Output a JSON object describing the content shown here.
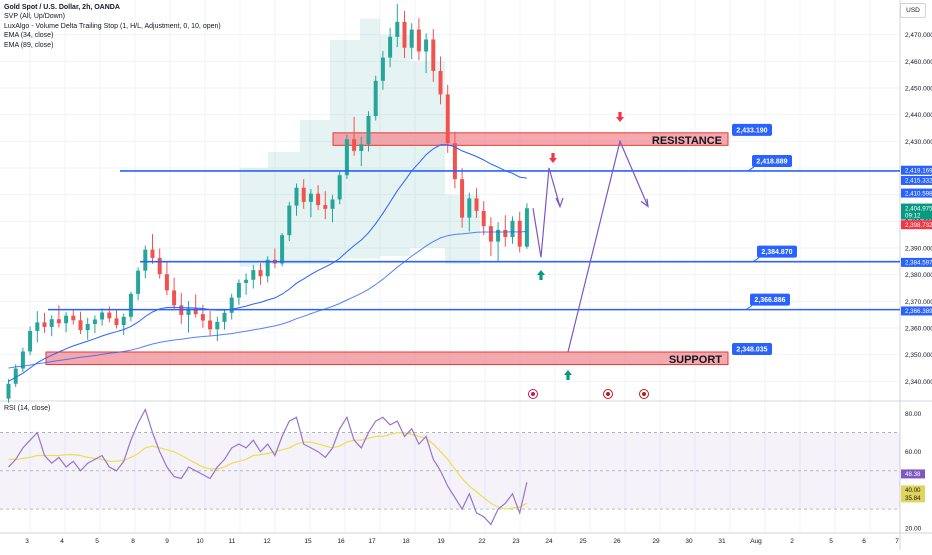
{
  "legend": {
    "symbol": "Gold Spot / U.S. Dollar, 2h, OANDA",
    "indicators": [
      "SVP (All, Up/Down)",
      "LuxAlgo - Volume Delta Trailing Stop (1, H/L, Adjustment, 0, 10, open)",
      "EMA (34, close)",
      "EMA (89, close)"
    ]
  },
  "currency_button": "USD",
  "rsi_label": "RSI (14, close)",
  "colors": {
    "bull": "#26a69a",
    "bear": "#ef5350",
    "line": "#2962ff",
    "zone_fill": "#f28b91",
    "zone_border": "#e53935",
    "projection": "#7e57c2",
    "rsi": "#9575cd",
    "rsi_ma": "#e9e052",
    "arrow_up": "#089981",
    "arrow_down": "#f23645"
  },
  "chart_data": [
    {
      "type": "candlestick",
      "title": "",
      "price_range": [
        2333,
        2483
      ],
      "y_ticks": [
        2340,
        2350,
        2360,
        2370,
        2380,
        2390,
        2400,
        2410,
        2420,
        2430,
        2440,
        2450,
        2460,
        2470
      ],
      "y_tick_labels": [
        "2,340.000",
        "2,350.000",
        "2,360.000",
        "2,370.000",
        "2,380.000",
        "2,390.000",
        "2,400.000",
        "2,410.000",
        "2,420.000",
        "2,430.000",
        "2,440.000",
        "2,450.000",
        "2,460.000",
        "2,470.000"
      ],
      "x_tick_labels": [
        "3",
        "4",
        "5",
        "8",
        "9",
        "10",
        "11",
        "12",
        "15",
        "16",
        "17",
        "18",
        "19",
        "22",
        "23",
        "24",
        "25",
        "26",
        "29",
        "30",
        "31",
        "Aug",
        "2",
        "5",
        "6",
        "7"
      ],
      "ohlc": [
        [
          2333.5,
          2340.8,
          2332,
          2339.1
        ],
        [
          2339.1,
          2346.4,
          2337.9,
          2344.8
        ],
        [
          2344.8,
          2352.6,
          2343.5,
          2351.2
        ],
        [
          2351.2,
          2360.5,
          2349.8,
          2358.9
        ],
        [
          2358.9,
          2366.3,
          2354.6,
          2362.1
        ],
        [
          2362.1,
          2365.7,
          2358.2,
          2360.4
        ],
        [
          2360.4,
          2364.8,
          2356.9,
          2363.3
        ],
        [
          2363.3,
          2368.5,
          2360.2,
          2361.8
        ],
        [
          2361.8,
          2365.9,
          2358.4,
          2364.6
        ],
        [
          2364.6,
          2367.2,
          2361.3,
          2362.9
        ],
        [
          2362.9,
          2366.1,
          2357.7,
          2359.2
        ],
        [
          2359.2,
          2363.8,
          2355.6,
          2361.5
        ],
        [
          2361.5,
          2364.7,
          2358.1,
          2363.2
        ],
        [
          2363.2,
          2367.4,
          2360.9,
          2365.8
        ],
        [
          2365.8,
          2368.1,
          2362.2,
          2363.6
        ],
        [
          2363.6,
          2366.9,
          2359.8,
          2361.1
        ],
        [
          2361.1,
          2365.4,
          2357.3,
          2364.2
        ],
        [
          2364.2,
          2373.6,
          2362.5,
          2372.8
        ],
        [
          2372.8,
          2382.7,
          2370.4,
          2381.5
        ],
        [
          2381.5,
          2390.9,
          2378.6,
          2389.4
        ],
        [
          2389.4,
          2395.2,
          2384.1,
          2386.3
        ],
        [
          2386.3,
          2389.8,
          2378.5,
          2380.2
        ],
        [
          2380.2,
          2384.6,
          2372.3,
          2374.1
        ],
        [
          2374.1,
          2378.9,
          2366.8,
          2368.5
        ],
        [
          2368.5,
          2373.2,
          2361.6,
          2364.9
        ],
        [
          2364.9,
          2370.1,
          2358.3,
          2367.3
        ],
        [
          2367.3,
          2372.6,
          2363.9,
          2365.2
        ],
        [
          2365.2,
          2368.7,
          2360.1,
          2362.8
        ],
        [
          2362.8,
          2366.4,
          2356.9,
          2359.5
        ],
        [
          2359.5,
          2364.2,
          2355.1,
          2362.3
        ],
        [
          2362.3,
          2366.8,
          2359.4,
          2365.7
        ],
        [
          2365.7,
          2372.9,
          2363.2,
          2371.4
        ],
        [
          2371.4,
          2378.2,
          2368.7,
          2376.9
        ],
        [
          2376.9,
          2380.5,
          2372.4,
          2378.1
        ],
        [
          2378.1,
          2383.6,
          2374.8,
          2381.7
        ],
        [
          2381.7,
          2384.3,
          2376.2,
          2379.4
        ],
        [
          2379.4,
          2386.9,
          2377.1,
          2385.6
        ],
        [
          2385.6,
          2389.8,
          2382.4,
          2384.2
        ],
        [
          2384.2,
          2395.6,
          2383.1,
          2394.8
        ],
        [
          2394.8,
          2407.3,
          2392.6,
          2405.9
        ],
        [
          2405.9,
          2414.2,
          2402.1,
          2412.6
        ],
        [
          2412.6,
          2415.8,
          2404.7,
          2407.3
        ],
        [
          2407.3,
          2412.1,
          2401.5,
          2410.4
        ],
        [
          2410.4,
          2413.6,
          2404.2,
          2406.1
        ],
        [
          2406.1,
          2411.3,
          2400.8,
          2404.7
        ],
        [
          2404.7,
          2409.9,
          2399.6,
          2408.2
        ],
        [
          2408.2,
          2418.6,
          2406.4,
          2417.3
        ],
        [
          2417.3,
          2432.5,
          2415.9,
          2430.8
        ],
        [
          2430.8,
          2439.2,
          2424.6,
          2426.4
        ],
        [
          2426.4,
          2431.8,
          2420.7,
          2428.9
        ],
        [
          2428.9,
          2441.3,
          2426.2,
          2439.5
        ],
        [
          2439.5,
          2454.6,
          2437.8,
          2452.7
        ],
        [
          2452.7,
          2463.9,
          2449.3,
          2461.4
        ],
        [
          2461.4,
          2472.6,
          2457.8,
          2469.2
        ],
        [
          2469.2,
          2481.5,
          2465.3,
          2474.8
        ],
        [
          2474.8,
          2478.9,
          2461.2,
          2465.1
        ],
        [
          2465.1,
          2474.3,
          2460.8,
          2471.9
        ],
        [
          2471.9,
          2476.2,
          2460.4,
          2463.7
        ],
        [
          2463.7,
          2470.5,
          2455.6,
          2468.2
        ],
        [
          2468.2,
          2472.1,
          2452.3,
          2456.4
        ],
        [
          2456.4,
          2461.8,
          2443.9,
          2447.6
        ],
        [
          2447.6,
          2451.2,
          2425.7,
          2429.3
        ],
        [
          2429.3,
          2433.6,
          2412.4,
          2415.8
        ],
        [
          2415.8,
          2419.9,
          2397.6,
          2401.4
        ],
        [
          2401.4,
          2410.8,
          2396.2,
          2408.6
        ],
        [
          2408.6,
          2412.4,
          2401.3,
          2403.9
        ],
        [
          2403.9,
          2407.6,
          2394.8,
          2398.2
        ],
        [
          2398.2,
          2401.5,
          2386.9,
          2392.4
        ],
        [
          2392.4,
          2399.7,
          2385.1,
          2396.8
        ],
        [
          2396.8,
          2402.3,
          2390.5,
          2394.1
        ],
        [
          2394.1,
          2401.8,
          2391.6,
          2400.2
        ],
        [
          2400.2,
          2403.6,
          2388.4,
          2390.5
        ],
        [
          2390.5,
          2406.8,
          2389.7,
          2404.9
        ]
      ],
      "ema34": [
        2340,
        2341.5,
        2343,
        2345,
        2347,
        2348.5,
        2349.8,
        2351,
        2352.2,
        2353.3,
        2354.2,
        2355.1,
        2356,
        2357,
        2357.9,
        2358.6,
        2359.4,
        2360.6,
        2362.2,
        2364.3,
        2366,
        2367.2,
        2367.7,
        2367.8,
        2367.6,
        2367.6,
        2367.5,
        2367.3,
        2366.9,
        2366.7,
        2366.7,
        2367,
        2367.6,
        2368.2,
        2369,
        2369.6,
        2370.5,
        2371.3,
        2372.7,
        2374.6,
        2376.8,
        2378.4,
        2380.1,
        2381.6,
        2382.9,
        2384.3,
        2386.1,
        2388.6,
        2390.9,
        2393,
        2395.7,
        2399.1,
        2403,
        2407.2,
        2411.5,
        2415.1,
        2418.9,
        2421.9,
        2425,
        2427.2,
        2428.7,
        2428.7,
        2427.9,
        2426.4,
        2425.4,
        2424.3,
        2423,
        2421.5,
        2420.3,
        2419,
        2418,
        2416.6,
        2416.2
      ],
      "ema89": [
        2345,
        2345.4,
        2345.7,
        2346.1,
        2346.6,
        2347,
        2347.4,
        2347.8,
        2348.2,
        2348.6,
        2349,
        2349.3,
        2349.7,
        2350.1,
        2350.5,
        2350.8,
        2351.2,
        2351.7,
        2352.4,
        2353.2,
        2354,
        2354.6,
        2355.1,
        2355.5,
        2355.8,
        2356.2,
        2356.5,
        2356.8,
        2357,
        2357.3,
        2357.6,
        2357.9,
        2358.4,
        2358.8,
        2359.3,
        2359.7,
        2360.3,
        2360.8,
        2361.5,
        2362.4,
        2363.5,
        2364.4,
        2365.4,
        2366.3,
        2367.2,
        2368.1,
        2369.2,
        2370.5,
        2371.7,
        2373,
        2374.5,
        2376.3,
        2378.3,
        2380.5,
        2382.8,
        2384.8,
        2387,
        2388.8,
        2390.8,
        2392.4,
        2393.8,
        2394.6,
        2395.1,
        2395.3,
        2395.6,
        2395.9,
        2396,
        2396,
        2396,
        2396,
        2396.1,
        2396,
        2396.2
      ],
      "horizontal_levels": [
        {
          "price": 2418.889,
          "label": "2,418.889"
        },
        {
          "price": 2384.87,
          "label": "2,384.870"
        },
        {
          "price": 2366.886,
          "label": "2,366.886"
        }
      ],
      "zones": [
        {
          "name": "RESISTANCE",
          "top": 2433.19,
          "bottom": 2428.5,
          "label": "2,433.190"
        },
        {
          "name": "SUPPORT",
          "top": 2351.0,
          "bottom": 2346.3,
          "label": "2,348.035"
        }
      ],
      "projection_path": [
        [
          2390.5,
          2404.9
        ],
        [
          2392.0,
          2386.5
        ],
        [
          2394.0,
          2420.0
        ],
        [
          2395.5,
          2405.0
        ]
      ],
      "projection_path2": [
        [
          2414.0,
          2351.0
        ],
        [
          2419.5,
          2429.6
        ],
        [
          2426.0,
          2405.6
        ]
      ],
      "price_axis_badges": [
        {
          "label": "2,419.169",
          "price": 2419.169,
          "color": "#2962ff"
        },
        {
          "label": "2,415.332",
          "price": 2415.332,
          "color": "#2962ff"
        },
        {
          "label": "2,410.598",
          "price": 2410.598,
          "color": "#2962ff"
        },
        {
          "label": "2,404.975",
          "price": 2404.975,
          "color": "#089981",
          "sub": "09:12"
        },
        {
          "label": "2,398.732",
          "price": 2398.732,
          "color": "#f23645"
        },
        {
          "label": "2,384.597",
          "price": 2384.597,
          "color": "#2962ff"
        },
        {
          "label": "2,366.389",
          "price": 2366.389,
          "color": "#2962ff"
        }
      ]
    },
    {
      "type": "line",
      "title": "RSI (14, close)",
      "y_range": [
        18,
        86
      ],
      "y_ticks": [
        20,
        40,
        60,
        80
      ],
      "y_tick_labels": [
        "20.00",
        "40.00",
        "60.00",
        "80.00"
      ],
      "bands": [
        70,
        50,
        30
      ],
      "rsi": [
        52,
        56,
        62,
        66,
        70,
        58,
        54,
        57,
        52,
        55,
        50,
        54,
        56,
        58,
        52,
        50,
        55,
        66,
        75,
        82,
        70,
        60,
        52,
        47,
        46,
        52,
        50,
        48,
        46,
        52,
        56,
        62,
        64,
        62,
        66,
        60,
        64,
        58,
        68,
        76,
        78,
        64,
        62,
        60,
        57,
        62,
        72,
        78,
        66,
        62,
        70,
        76,
        78,
        74,
        76,
        68,
        72,
        64,
        68,
        56,
        50,
        42,
        36,
        30,
        38,
        28,
        26,
        22,
        30,
        33,
        38,
        28,
        44
      ],
      "rsi_ma": [
        56,
        56,
        56.5,
        57,
        58,
        58,
        58,
        58,
        58.5,
        58.5,
        58,
        57,
        56.5,
        56,
        55,
        55,
        55.5,
        57,
        59,
        62,
        63,
        62,
        61,
        60,
        58,
        56,
        54,
        52,
        51,
        51,
        52,
        54,
        55,
        56,
        58,
        58.5,
        59,
        60,
        61,
        62,
        64,
        65,
        65,
        64,
        63,
        62,
        63,
        65,
        66,
        66,
        67,
        68,
        68,
        69,
        70,
        70,
        69,
        68,
        67,
        64,
        60,
        56,
        51,
        46,
        42,
        39,
        36,
        33,
        31,
        30,
        30.5,
        31,
        33
      ],
      "labels": [
        {
          "value": 48.38,
          "label": "48.38",
          "color": "#7e57c2"
        },
        {
          "value": 40.0,
          "label": "40.00",
          "color": "#e0d45a"
        },
        {
          "value": 35.84,
          "label": "35.84",
          "color": "#e0d45a"
        }
      ]
    }
  ]
}
